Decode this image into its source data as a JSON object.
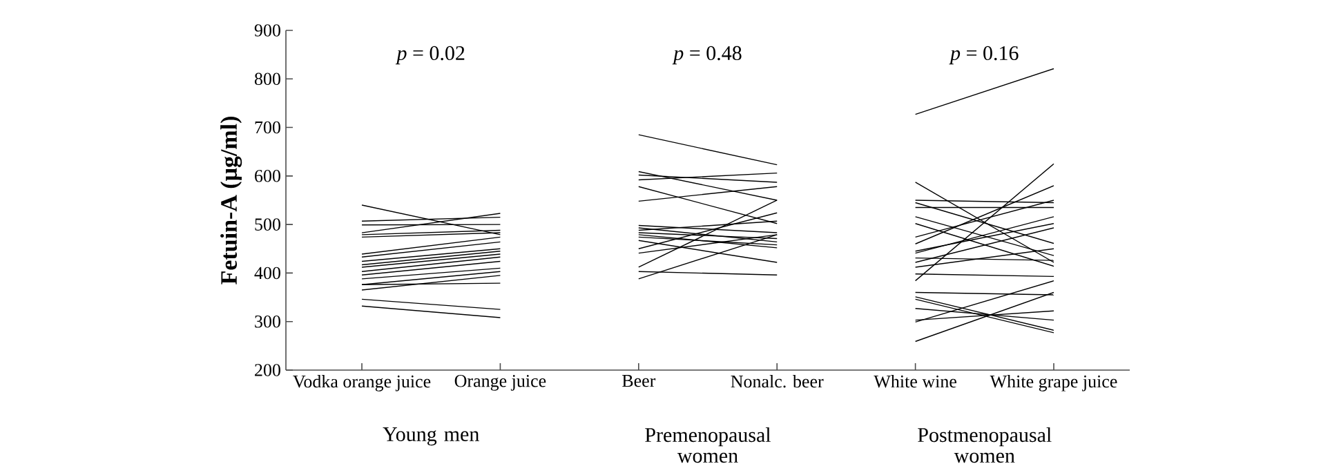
{
  "chart_data": {
    "type": "line",
    "ylabel": "Fetuin-A (μg/ml)",
    "categories": [
      "Vodka orange juice",
      "Orange juice",
      "Beer",
      "Nonalc. beer",
      "White wine",
      "White grape juice"
    ],
    "ylim": [
      200,
      900
    ],
    "yticks": [
      200,
      300,
      400,
      500,
      600,
      700,
      800,
      900
    ],
    "grid": false,
    "annotations": [
      "*p* = 0.02",
      "*p* = 0.48",
      "*p* = 0.16",
      "Young men",
      "Premenopausal women",
      "Postmenopausal women"
    ],
    "series": [
      {
        "color": "#000000",
        "values": [
          540,
          479,
          null,
          null,
          null,
          null
        ]
      },
      {
        "color": "#000000",
        "values": [
          507,
          515,
          null,
          null,
          null,
          null
        ]
      },
      {
        "color": "#000000",
        "values": [
          499,
          500,
          null,
          null,
          null,
          null
        ]
      },
      {
        "color": "#000000",
        "values": [
          483,
          523,
          null,
          null,
          null,
          null
        ]
      },
      {
        "color": "#000000",
        "values": [
          479,
          488,
          null,
          null,
          null,
          null
        ]
      },
      {
        "color": "#000000",
        "values": [
          474,
          483,
          null,
          null,
          null,
          null
        ]
      },
      {
        "color": "#000000",
        "values": [
          439,
          474,
          null,
          null,
          null,
          null
        ]
      },
      {
        "color": "#000000",
        "values": [
          433,
          464,
          null,
          null,
          null,
          null
        ]
      },
      {
        "color": "#000000",
        "values": [
          424,
          450,
          null,
          null,
          null,
          null
        ]
      },
      {
        "color": "#000000",
        "values": [
          417,
          445,
          null,
          null,
          null,
          null
        ]
      },
      {
        "color": "#000000",
        "values": [
          412,
          439,
          null,
          null,
          null,
          null
        ]
      },
      {
        "color": "#000000",
        "values": [
          403,
          433,
          null,
          null,
          null,
          null
        ]
      },
      {
        "color": "#000000",
        "values": [
          396,
          424,
          null,
          null,
          null,
          null
        ]
      },
      {
        "color": "#000000",
        "values": [
          388,
          410,
          null,
          null,
          null,
          null
        ]
      },
      {
        "color": "#000000",
        "values": [
          376,
          403,
          null,
          null,
          null,
          null
        ]
      },
      {
        "color": "#000000",
        "values": [
          365,
          395,
          null,
          null,
          null,
          null
        ]
      },
      {
        "color": "#000000",
        "values": [
          376,
          379,
          null,
          null,
          null,
          null
        ]
      },
      {
        "color": "#000000",
        "values": [
          346,
          325,
          null,
          null,
          null,
          null
        ]
      },
      {
        "color": "#000000",
        "values": [
          332,
          308,
          null,
          null,
          null,
          null
        ]
      },
      {
        "color": "#000000",
        "values": [
          null,
          null,
          685,
          623,
          null,
          null
        ]
      },
      {
        "color": "#000000",
        "values": [
          null,
          null,
          609,
          550,
          null,
          null
        ]
      },
      {
        "color": "#000000",
        "values": [
          null,
          null,
          602,
          587,
          null,
          null
        ]
      },
      {
        "color": "#000000",
        "values": [
          null,
          null,
          592,
          606,
          null,
          null
        ]
      },
      {
        "color": "#000000",
        "values": [
          null,
          null,
          578,
          502,
          null,
          null
        ]
      },
      {
        "color": "#000000",
        "values": [
          null,
          null,
          548,
          578,
          null,
          null
        ]
      },
      {
        "color": "#000000",
        "values": [
          null,
          null,
          498,
          483,
          null,
          null
        ]
      },
      {
        "color": "#000000",
        "values": [
          null,
          null,
          493,
          464,
          null,
          null
        ]
      },
      {
        "color": "#000000",
        "values": [
          null,
          null,
          488,
          507,
          null,
          null
        ]
      },
      {
        "color": "#000000",
        "values": [
          null,
          null,
          483,
          471,
          null,
          null
        ]
      },
      {
        "color": "#000000",
        "values": [
          null,
          null,
          479,
          452,
          null,
          null
        ]
      },
      {
        "color": "#000000",
        "values": [
          null,
          null,
          474,
          458,
          null,
          null
        ]
      },
      {
        "color": "#000000",
        "values": [
          null,
          null,
          467,
          422,
          null,
          null
        ]
      },
      {
        "color": "#000000",
        "values": [
          null,
          null,
          450,
          524,
          null,
          null
        ]
      },
      {
        "color": "#000000",
        "values": [
          null,
          null,
          441,
          479,
          null,
          null
        ]
      },
      {
        "color": "#000000",
        "values": [
          null,
          null,
          412,
          550,
          null,
          null
        ]
      },
      {
        "color": "#000000",
        "values": [
          null,
          null,
          403,
          396,
          null,
          null
        ]
      },
      {
        "color": "#000000",
        "values": [
          null,
          null,
          388,
          479,
          null,
          null
        ]
      },
      {
        "color": "#000000",
        "values": [
          null,
          null,
          null,
          null,
          727,
          821
        ]
      },
      {
        "color": "#000000",
        "values": [
          null,
          null,
          null,
          null,
          587,
          422
        ]
      },
      {
        "color": "#000000",
        "values": [
          null,
          null,
          null,
          null,
          550,
          545
        ]
      },
      {
        "color": "#000000",
        "values": [
          null,
          null,
          null,
          null,
          545,
          461
        ]
      },
      {
        "color": "#000000",
        "values": [
          null,
          null,
          null,
          null,
          535,
          535
        ]
      },
      {
        "color": "#000000",
        "values": [
          null,
          null,
          null,
          null,
          516,
          436
        ]
      },
      {
        "color": "#000000",
        "values": [
          null,
          null,
          null,
          null,
          502,
          414
        ]
      },
      {
        "color": "#000000",
        "values": [
          null,
          null,
          null,
          null,
          474,
          550
        ]
      },
      {
        "color": "#000000",
        "values": [
          null,
          null,
          null,
          null,
          460,
          580
        ]
      },
      {
        "color": "#000000",
        "values": [
          null,
          null,
          null,
          null,
          445,
          502
        ]
      },
      {
        "color": "#000000",
        "values": [
          null,
          null,
          null,
          null,
          441,
          516
        ]
      },
      {
        "color": "#000000",
        "values": [
          null,
          null,
          null,
          null,
          431,
          426
        ]
      },
      {
        "color": "#000000",
        "values": [
          null,
          null,
          null,
          null,
          422,
          493
        ]
      },
      {
        "color": "#000000",
        "values": [
          null,
          null,
          null,
          null,
          412,
          450
        ]
      },
      {
        "color": "#000000",
        "values": [
          null,
          null,
          null,
          null,
          384,
          625
        ]
      },
      {
        "color": "#000000",
        "values": [
          null,
          null,
          null,
          null,
          398,
          393
        ]
      },
      {
        "color": "#000000",
        "values": [
          null,
          null,
          null,
          null,
          360,
          355
        ]
      },
      {
        "color": "#000000",
        "values": [
          null,
          null,
          null,
          null,
          351,
          282
        ]
      },
      {
        "color": "#000000",
        "values": [
          null,
          null,
          null,
          null,
          346,
          277
        ]
      },
      {
        "color": "#000000",
        "values": [
          null,
          null,
          null,
          null,
          327,
          303
        ]
      },
      {
        "color": "#000000",
        "values": [
          null,
          null,
          null,
          null,
          303,
          322
        ]
      },
      {
        "color": "#000000",
        "values": [
          null,
          null,
          null,
          null,
          299,
          384
        ]
      },
      {
        "color": "#000000",
        "values": [
          null,
          null,
          null,
          null,
          259,
          360
        ]
      }
    ]
  }
}
